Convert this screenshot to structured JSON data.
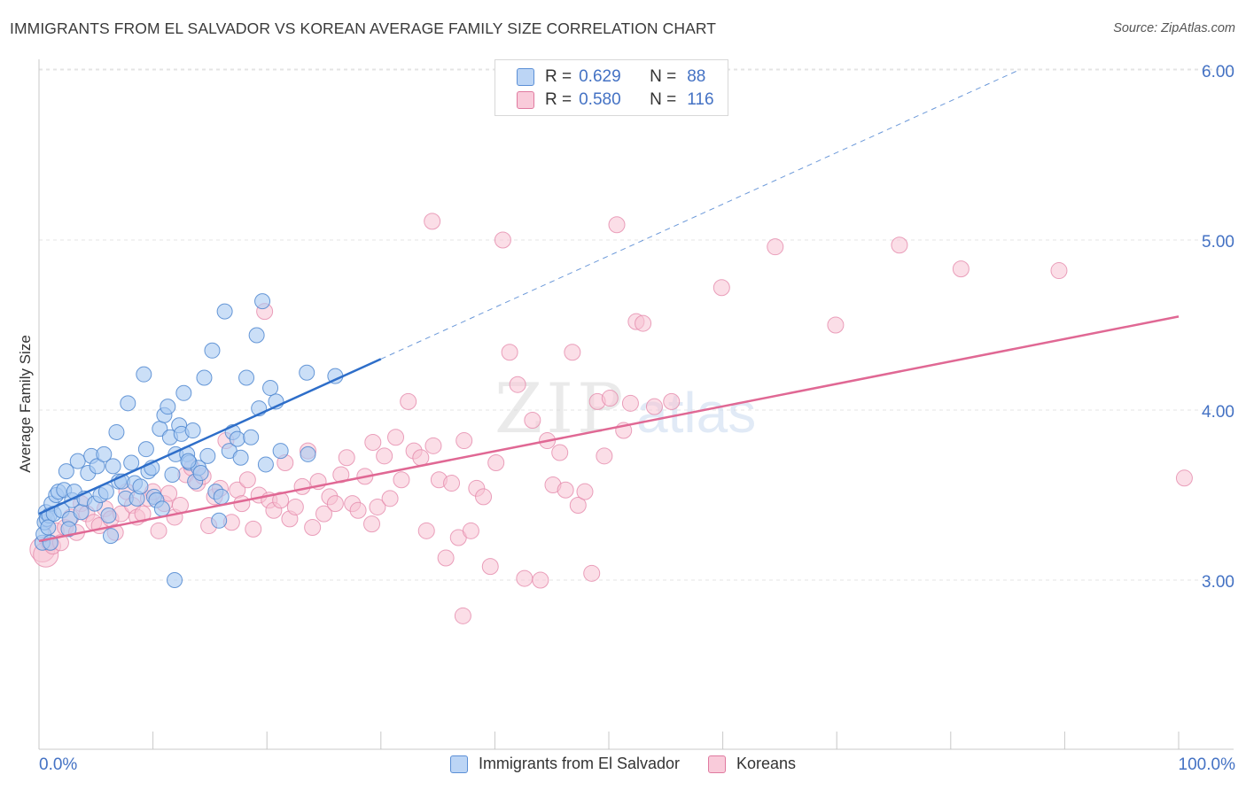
{
  "header": {
    "title": "IMMIGRANTS FROM EL SALVADOR VS KOREAN AVERAGE FAMILY SIZE CORRELATION CHART",
    "source": "Source: ZipAtlas.com"
  },
  "watermark": {
    "zip": "ZIP",
    "atlas": "atlas"
  },
  "legend": {
    "rows": [
      {
        "r_label": "R =",
        "r_value": "0.629",
        "n_label": "N =",
        "n_value": "88",
        "color": "#9ec3f0",
        "border": "#5b8fd6"
      },
      {
        "r_label": "R =",
        "r_value": "0.580",
        "n_label": "N =",
        "n_value": "116",
        "color": "#f6bcd0",
        "border": "#e07aa0"
      }
    ]
  },
  "bottom_legend": {
    "items": [
      {
        "label": "Immigrants from El Salvador",
        "color": "#9ec3f0",
        "border": "#5b8fd6"
      },
      {
        "label": "Koreans",
        "color": "#f6bcd0",
        "border": "#e07aa0"
      }
    ]
  },
  "chart_data": {
    "type": "scatter",
    "title": "IMMIGRANTS FROM EL SALVADOR VS KOREAN AVERAGE FAMILY SIZE CORRELATION CHART",
    "xlabel": "",
    "ylabel": "Average Family Size",
    "xlim": [
      0,
      100
    ],
    "ylim": [
      2.0,
      6.1
    ],
    "x_tick_labels": [
      "0.0%",
      "100.0%"
    ],
    "y_ticks": [
      3.0,
      4.0,
      5.0,
      6.0
    ],
    "y_tick_labels": [
      "3.00",
      "4.00",
      "5.00",
      "6.00"
    ],
    "grid": true,
    "colors": {
      "blue_fill": "#a9c9f2",
      "blue_stroke": "#4f87d0",
      "blue_line": "#2e6ec9",
      "pink_fill": "#f7c3d4",
      "pink_stroke": "#e58aab",
      "pink_line": "#e06894",
      "axis_label": "#4472c4"
    },
    "series": [
      {
        "name": "Immigrants from El Salvador",
        "trend": {
          "x": [
            0,
            30
          ],
          "y": [
            3.39,
            4.3
          ],
          "dashed_extension_to": [
            86,
            6.0
          ]
        },
        "points": [
          [
            0.3,
            3.22
          ],
          [
            0.4,
            3.27
          ],
          [
            0.5,
            3.34
          ],
          [
            0.6,
            3.4
          ],
          [
            0.7,
            3.36
          ],
          [
            0.9,
            3.38
          ],
          [
            1.1,
            3.45
          ],
          [
            1.3,
            3.39
          ],
          [
            1.5,
            3.5
          ],
          [
            1.7,
            3.52
          ],
          [
            2.0,
            3.41
          ],
          [
            2.2,
            3.53
          ],
          [
            2.4,
            3.64
          ],
          [
            2.7,
            3.36
          ],
          [
            2.9,
            3.47
          ],
          [
            3.1,
            3.52
          ],
          [
            3.4,
            3.7
          ],
          [
            3.7,
            3.4
          ],
          [
            4.0,
            3.48
          ],
          [
            4.3,
            3.63
          ],
          [
            4.6,
            3.73
          ],
          [
            4.9,
            3.45
          ],
          [
            5.1,
            3.67
          ],
          [
            5.4,
            3.5
          ],
          [
            5.7,
            3.74
          ],
          [
            5.9,
            3.52
          ],
          [
            6.1,
            3.38
          ],
          [
            6.3,
            3.26
          ],
          [
            6.5,
            3.67
          ],
          [
            6.8,
            3.87
          ],
          [
            7.0,
            3.58
          ],
          [
            7.3,
            3.58
          ],
          [
            7.6,
            3.48
          ],
          [
            7.8,
            4.04
          ],
          [
            8.1,
            3.69
          ],
          [
            8.4,
            3.57
          ],
          [
            8.6,
            3.48
          ],
          [
            8.9,
            3.55
          ],
          [
            9.2,
            4.21
          ],
          [
            9.4,
            3.77
          ],
          [
            9.6,
            3.64
          ],
          [
            9.9,
            3.66
          ],
          [
            10.1,
            3.49
          ],
          [
            10.3,
            3.47
          ],
          [
            10.6,
            3.89
          ],
          [
            10.8,
            3.42
          ],
          [
            11.0,
            3.97
          ],
          [
            11.3,
            4.02
          ],
          [
            11.5,
            3.84
          ],
          [
            11.7,
            3.62
          ],
          [
            12.0,
            3.74
          ],
          [
            12.3,
            3.91
          ],
          [
            12.5,
            3.86
          ],
          [
            12.7,
            4.1
          ],
          [
            13.0,
            3.74
          ],
          [
            13.2,
            3.69
          ],
          [
            13.5,
            3.88
          ],
          [
            13.7,
            3.58
          ],
          [
            14.0,
            3.66
          ],
          [
            14.2,
            3.63
          ],
          [
            14.5,
            4.19
          ],
          [
            14.8,
            3.73
          ],
          [
            15.2,
            4.35
          ],
          [
            15.5,
            3.52
          ],
          [
            15.8,
            3.35
          ],
          [
            16.0,
            3.49
          ],
          [
            16.3,
            4.58
          ],
          [
            16.7,
            3.76
          ],
          [
            17.0,
            3.87
          ],
          [
            17.4,
            3.83
          ],
          [
            17.7,
            3.72
          ],
          [
            18.2,
            4.19
          ],
          [
            18.6,
            3.84
          ],
          [
            19.1,
            4.44
          ],
          [
            19.3,
            4.01
          ],
          [
            19.6,
            4.64
          ],
          [
            19.9,
            3.68
          ],
          [
            20.3,
            4.13
          ],
          [
            20.8,
            4.05
          ],
          [
            21.2,
            3.76
          ],
          [
            23.6,
            3.74
          ],
          [
            23.5,
            4.22
          ],
          [
            26.0,
            4.2
          ],
          [
            11.9,
            3.0
          ],
          [
            13.1,
            3.7
          ],
          [
            2.6,
            3.3
          ],
          [
            1.0,
            3.22
          ],
          [
            0.8,
            3.31
          ]
        ]
      },
      {
        "name": "Koreans",
        "trend": {
          "x": [
            0,
            100
          ],
          "y": [
            3.23,
            4.55
          ]
        },
        "points": [
          [
            0.3,
            3.18
          ],
          [
            0.6,
            3.15
          ],
          [
            0.9,
            3.22
          ],
          [
            1.2,
            3.2
          ],
          [
            1.5,
            3.29
          ],
          [
            1.9,
            3.22
          ],
          [
            2.3,
            3.31
          ],
          [
            2.8,
            3.37
          ],
          [
            3.3,
            3.28
          ],
          [
            3.7,
            3.45
          ],
          [
            4.2,
            3.39
          ],
          [
            4.8,
            3.34
          ],
          [
            5.3,
            3.32
          ],
          [
            5.8,
            3.42
          ],
          [
            6.3,
            3.36
          ],
          [
            6.7,
            3.28
          ],
          [
            7.2,
            3.39
          ],
          [
            7.7,
            3.52
          ],
          [
            8.2,
            3.44
          ],
          [
            8.6,
            3.37
          ],
          [
            9.1,
            3.39
          ],
          [
            9.6,
            3.48
          ],
          [
            10.0,
            3.52
          ],
          [
            10.5,
            3.29
          ],
          [
            11.0,
            3.45
          ],
          [
            11.4,
            3.51
          ],
          [
            11.9,
            3.37
          ],
          [
            12.4,
            3.44
          ],
          [
            12.9,
            3.62
          ],
          [
            13.4,
            3.66
          ],
          [
            13.9,
            3.57
          ],
          [
            14.4,
            3.61
          ],
          [
            14.9,
            3.32
          ],
          [
            15.4,
            3.49
          ],
          [
            15.9,
            3.54
          ],
          [
            16.4,
            3.82
          ],
          [
            16.9,
            3.34
          ],
          [
            17.4,
            3.53
          ],
          [
            17.8,
            3.45
          ],
          [
            18.3,
            3.59
          ],
          [
            18.8,
            3.3
          ],
          [
            19.3,
            3.5
          ],
          [
            19.8,
            4.58
          ],
          [
            20.2,
            3.47
          ],
          [
            20.6,
            3.41
          ],
          [
            21.2,
            3.47
          ],
          [
            21.6,
            3.69
          ],
          [
            22.0,
            3.36
          ],
          [
            22.5,
            3.43
          ],
          [
            23.1,
            3.55
          ],
          [
            23.6,
            3.76
          ],
          [
            24.0,
            3.31
          ],
          [
            24.5,
            3.58
          ],
          [
            25.0,
            3.39
          ],
          [
            25.5,
            3.49
          ],
          [
            26.0,
            3.45
          ],
          [
            26.5,
            3.62
          ],
          [
            27.0,
            3.72
          ],
          [
            27.5,
            3.45
          ],
          [
            28.0,
            3.41
          ],
          [
            28.6,
            3.61
          ],
          [
            29.2,
            3.33
          ],
          [
            29.7,
            3.43
          ],
          [
            30.3,
            3.73
          ],
          [
            30.8,
            3.48
          ],
          [
            31.3,
            3.84
          ],
          [
            31.8,
            3.59
          ],
          [
            32.4,
            4.05
          ],
          [
            32.9,
            3.76
          ],
          [
            33.5,
            3.72
          ],
          [
            34.0,
            3.29
          ],
          [
            34.6,
            3.79
          ],
          [
            35.1,
            3.59
          ],
          [
            35.7,
            3.13
          ],
          [
            36.2,
            3.57
          ],
          [
            36.8,
            3.25
          ],
          [
            37.3,
            3.82
          ],
          [
            37.9,
            3.29
          ],
          [
            38.4,
            3.54
          ],
          [
            39.0,
            3.49
          ],
          [
            39.6,
            3.08
          ],
          [
            40.1,
            3.69
          ],
          [
            40.7,
            5.0
          ],
          [
            41.3,
            4.34
          ],
          [
            42.0,
            4.15
          ],
          [
            42.6,
            3.01
          ],
          [
            43.3,
            3.94
          ],
          [
            44.0,
            3.0
          ],
          [
            44.6,
            3.82
          ],
          [
            45.1,
            3.56
          ],
          [
            45.7,
            3.75
          ],
          [
            46.2,
            3.53
          ],
          [
            46.8,
            4.34
          ],
          [
            47.3,
            3.44
          ],
          [
            47.9,
            3.52
          ],
          [
            48.5,
            3.04
          ],
          [
            49.0,
            4.05
          ],
          [
            49.6,
            3.73
          ],
          [
            50.1,
            4.07
          ],
          [
            50.7,
            5.09
          ],
          [
            51.3,
            3.88
          ],
          [
            51.9,
            4.04
          ],
          [
            52.4,
            4.52
          ],
          [
            53.0,
            4.51
          ],
          [
            54.0,
            4.02
          ],
          [
            55.5,
            4.05
          ],
          [
            59.9,
            4.72
          ],
          [
            64.6,
            4.96
          ],
          [
            69.9,
            4.5
          ],
          [
            75.5,
            4.97
          ],
          [
            80.9,
            4.83
          ],
          [
            89.5,
            4.82
          ],
          [
            100.5,
            3.6
          ],
          [
            34.5,
            5.11
          ],
          [
            29.3,
            3.81
          ],
          [
            37.2,
            2.79
          ]
        ]
      }
    ]
  }
}
